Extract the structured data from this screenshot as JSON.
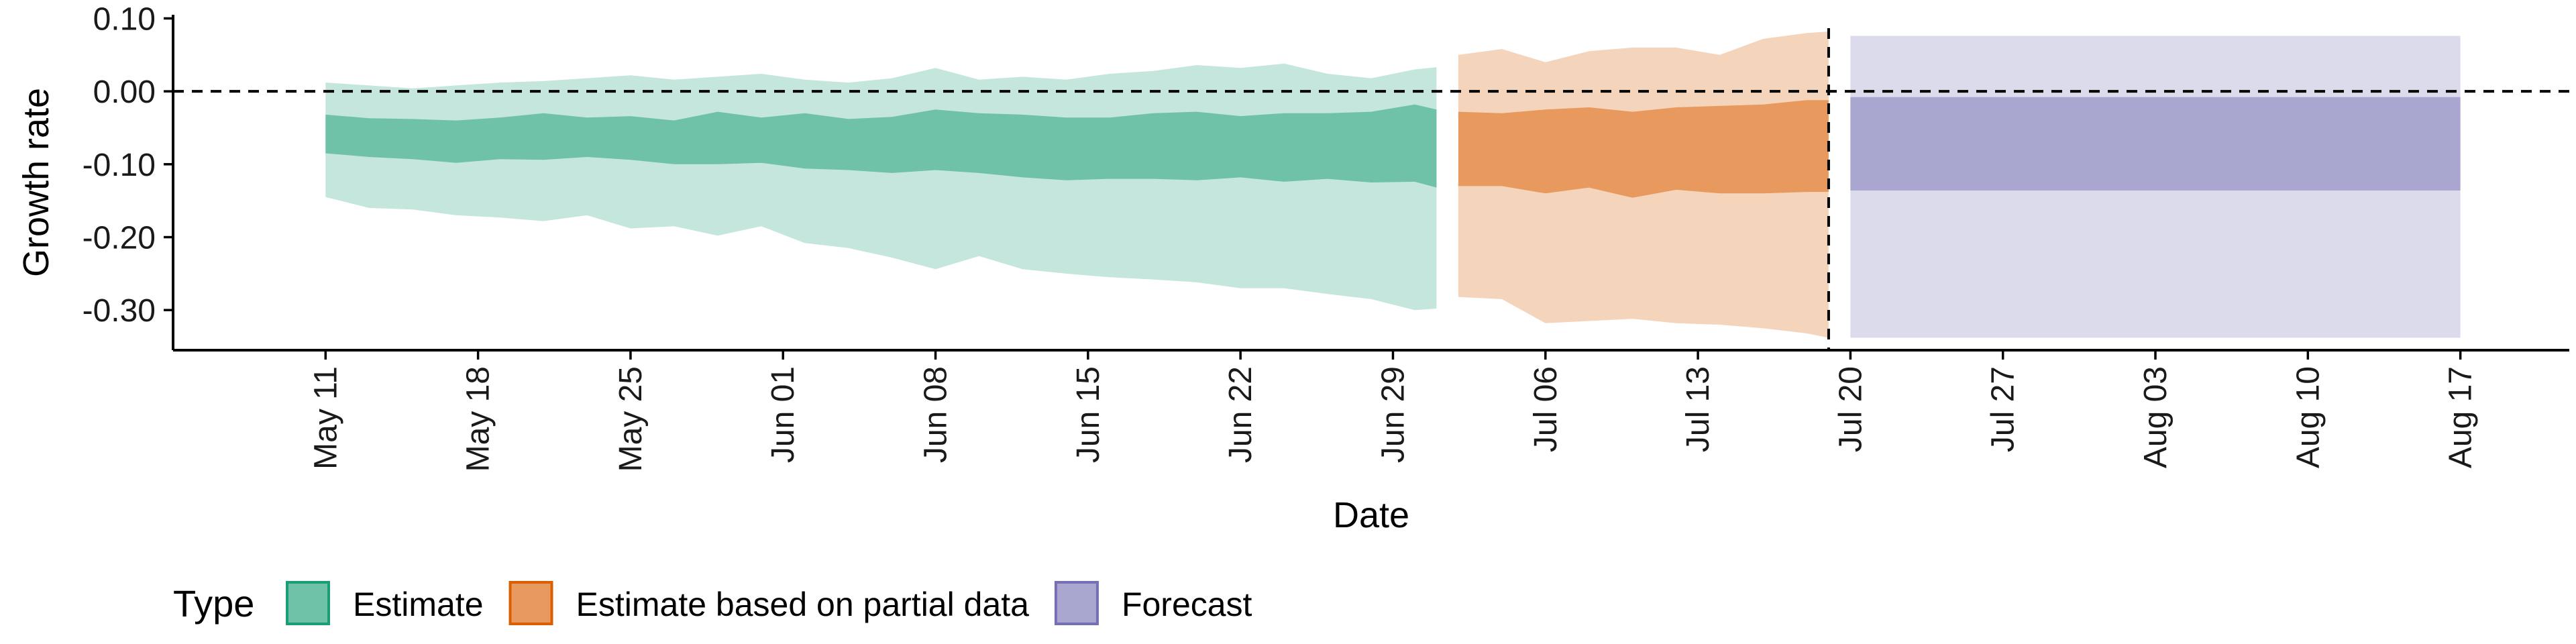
{
  "chart_data": {
    "type": "area",
    "xlabel": "Date",
    "ylabel": "Growth rate",
    "ylim": [
      -0.355,
      0.105
    ],
    "xlim": [
      "2020-05-04",
      "2020-08-22"
    ],
    "yticks": [
      0.1,
      0.0,
      -0.1,
      -0.2,
      -0.3
    ],
    "ytick_labels": [
      "0.10",
      "0.00",
      "-0.10",
      "-0.20",
      "-0.30"
    ],
    "xticks": [
      "2020-05-11",
      "2020-05-18",
      "2020-05-25",
      "2020-06-01",
      "2020-06-08",
      "2020-06-15",
      "2020-06-22",
      "2020-06-29",
      "2020-07-06",
      "2020-07-13",
      "2020-07-20",
      "2020-07-27",
      "2020-08-03",
      "2020-08-10",
      "2020-08-17"
    ],
    "xtick_labels": [
      "May 11",
      "May 18",
      "May 25",
      "Jun 01",
      "Jun 08",
      "Jun 15",
      "Jun 22",
      "Jun 29",
      "Jul 06",
      "Jul 13",
      "Jul 20",
      "Jul 27",
      "Aug 03",
      "Aug 10",
      "Aug 17"
    ],
    "reference_lines": {
      "horizontal_y": 0.0,
      "vertical_date": "2020-07-19"
    },
    "legend": {
      "title": "Type",
      "placement": "bottom-left",
      "items": [
        {
          "label": "Estimate",
          "fill": "#6fc1a8",
          "border": "#1b9e77"
        },
        {
          "label": "Estimate based on partial data",
          "fill": "#e89a5e",
          "border": "#d95f02"
        },
        {
          "label": "Forecast",
          "fill": "#a9a6d0",
          "border": "#7570b3"
        }
      ]
    },
    "series": [
      {
        "name": "Estimate",
        "inner_color": "#6fc1a8",
        "outer_color": "#c4e6dc",
        "x": [
          "2020-05-11",
          "2020-05-13",
          "2020-05-15",
          "2020-05-17",
          "2020-05-19",
          "2020-05-21",
          "2020-05-23",
          "2020-05-25",
          "2020-05-27",
          "2020-05-29",
          "2020-05-31",
          "2020-06-02",
          "2020-06-04",
          "2020-06-06",
          "2020-06-08",
          "2020-06-10",
          "2020-06-12",
          "2020-06-14",
          "2020-06-16",
          "2020-06-18",
          "2020-06-20",
          "2020-06-22",
          "2020-06-24",
          "2020-06-26",
          "2020-06-28",
          "2020-06-30",
          "2020-07-01"
        ],
        "lower_90": [
          -0.145,
          -0.16,
          -0.162,
          -0.17,
          -0.173,
          -0.178,
          -0.17,
          -0.188,
          -0.185,
          -0.198,
          -0.185,
          -0.208,
          -0.215,
          -0.228,
          -0.244,
          -0.226,
          -0.244,
          -0.25,
          -0.255,
          -0.258,
          -0.262,
          -0.27,
          -0.27,
          -0.278,
          -0.285,
          -0.3,
          -0.298
        ],
        "lower_50": [
          -0.085,
          -0.09,
          -0.093,
          -0.098,
          -0.093,
          -0.094,
          -0.09,
          -0.094,
          -0.1,
          -0.1,
          -0.098,
          -0.106,
          -0.108,
          -0.112,
          -0.108,
          -0.112,
          -0.118,
          -0.122,
          -0.12,
          -0.12,
          -0.122,
          -0.118,
          -0.124,
          -0.12,
          -0.125,
          -0.124,
          -0.132
        ],
        "upper_50": [
          -0.032,
          -0.037,
          -0.038,
          -0.04,
          -0.036,
          -0.03,
          -0.036,
          -0.034,
          -0.04,
          -0.028,
          -0.036,
          -0.03,
          -0.038,
          -0.035,
          -0.025,
          -0.03,
          -0.032,
          -0.036,
          -0.036,
          -0.03,
          -0.028,
          -0.034,
          -0.03,
          -0.03,
          -0.028,
          -0.018,
          -0.025
        ],
        "upper_90": [
          0.012,
          0.008,
          0.004,
          0.008,
          0.012,
          0.014,
          0.018,
          0.022,
          0.016,
          0.02,
          0.024,
          0.016,
          0.012,
          0.018,
          0.032,
          0.016,
          0.02,
          0.016,
          0.024,
          0.028,
          0.036,
          0.032,
          0.038,
          0.024,
          0.018,
          0.03,
          0.033
        ]
      },
      {
        "name": "Estimate based on partial data",
        "inner_color": "#e89a5e",
        "outer_color": "#f5d4bc",
        "x": [
          "2020-07-02",
          "2020-07-04",
          "2020-07-06",
          "2020-07-08",
          "2020-07-10",
          "2020-07-12",
          "2020-07-14",
          "2020-07-16",
          "2020-07-18",
          "2020-07-19"
        ],
        "lower_90": [
          -0.282,
          -0.285,
          -0.318,
          -0.315,
          -0.312,
          -0.318,
          -0.32,
          -0.325,
          -0.332,
          -0.338
        ],
        "lower_50": [
          -0.13,
          -0.13,
          -0.14,
          -0.132,
          -0.146,
          -0.135,
          -0.14,
          -0.14,
          -0.138,
          -0.138
        ],
        "upper_50": [
          -0.028,
          -0.03,
          -0.025,
          -0.022,
          -0.028,
          -0.022,
          -0.02,
          -0.018,
          -0.012,
          -0.012
        ],
        "upper_90": [
          0.05,
          0.058,
          0.04,
          0.055,
          0.06,
          0.06,
          0.05,
          0.072,
          0.08,
          0.082
        ]
      },
      {
        "name": "Forecast",
        "inner_color": "#a9a6d0",
        "outer_color": "#dcdbec",
        "x": [
          "2020-07-20",
          "2020-08-17"
        ],
        "lower_90": [
          -0.338,
          -0.338
        ],
        "lower_50": [
          -0.136,
          -0.136
        ],
        "upper_50": [
          -0.008,
          -0.008
        ],
        "upper_90": [
          0.076,
          0.076
        ]
      }
    ]
  }
}
